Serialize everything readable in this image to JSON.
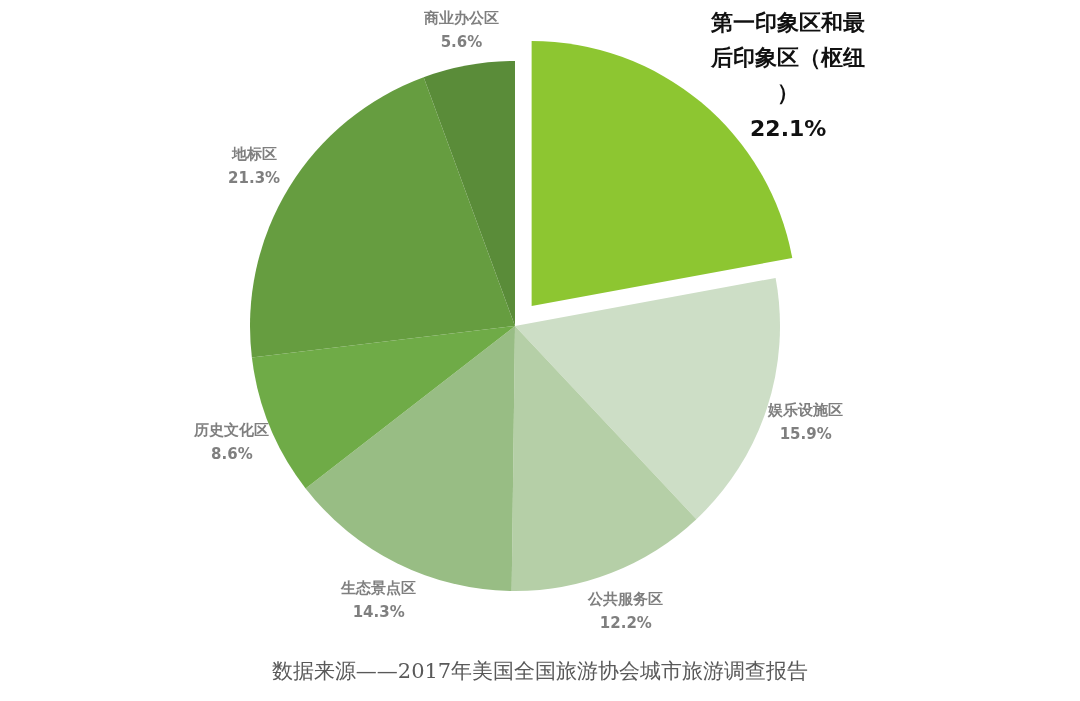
{
  "chart_data": {
    "type": "pie",
    "categories": [
      "第一印象区和最后印象区（枢纽）",
      "娱乐设施区",
      "公共服务区",
      "生态景点区",
      "历史文化区",
      "地标区",
      "商业办公区"
    ],
    "values": [
      22.1,
      15.9,
      12.2,
      14.3,
      8.6,
      21.3,
      5.6
    ],
    "colors": [
      "#8dc631",
      "#cddec6",
      "#b5cfa7",
      "#98bd84",
      "#6fab47",
      "#669d40",
      "#5a8c39"
    ],
    "value_labels": [
      "22.1%",
      "15.9%",
      "12.2%",
      "14.3%",
      "8.6%",
      "21.3%",
      "5.6%"
    ],
    "annotations": [
      "数据来源——2017年美国全国旅游协会城市旅游调查报告"
    ]
  }
}
